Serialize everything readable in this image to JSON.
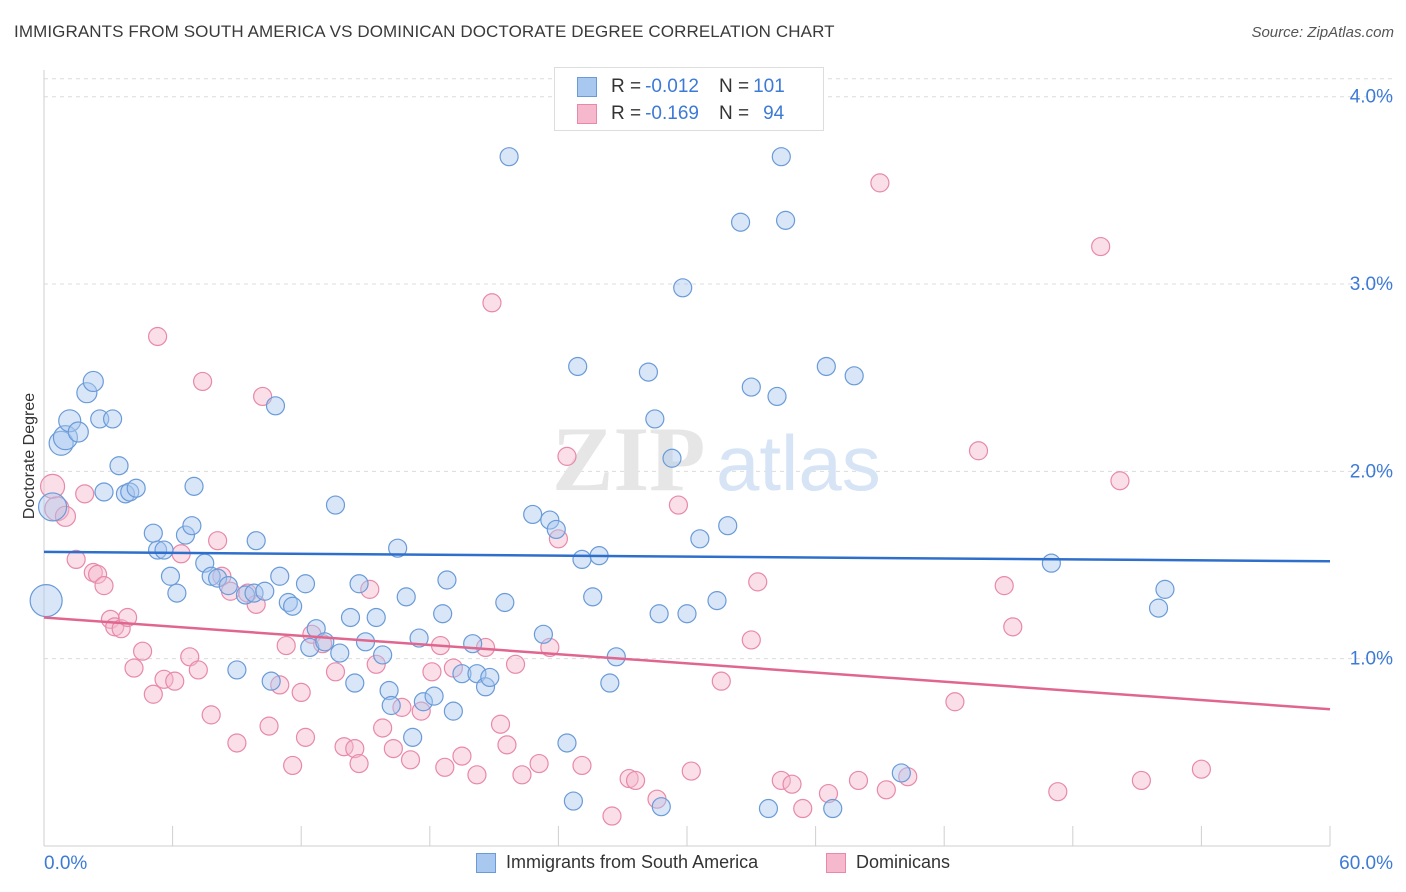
{
  "title": "IMMIGRANTS FROM SOUTH AMERICA VS DOMINICAN DOCTORATE DEGREE CORRELATION CHART",
  "source": "Source: ZipAtlas.com",
  "watermark": {
    "zip": "ZIP",
    "atlas": "atlas"
  },
  "legend_top": {
    "rows": [
      {
        "r_label": "R = ",
        "r_value": "-0.012",
        "n_label": "N = ",
        "n_value": "101"
      },
      {
        "r_label": "R = ",
        "r_value": "-0.169",
        "n_label": "N = ",
        "n_value": "94"
      }
    ]
  },
  "colors": {
    "blue_fill": "#a9c8ef",
    "blue_stroke": "#6a9bd8",
    "blue_line": "#2f6fcc",
    "pink_fill": "#f5b8cc",
    "pink_stroke": "#e889a9",
    "pink_line": "#e0668f",
    "tick_text": "#3d7ad6",
    "grid": "#dcdcdc"
  },
  "chart_data": {
    "type": "scatter",
    "title": "IMMIGRANTS FROM SOUTH AMERICA VS DOMINICAN DOCTORATE DEGREE CORRELATION CHART",
    "xlabel": "",
    "ylabel": "Doctorate Degree",
    "xlim": [
      0,
      60
    ],
    "ylim": [
      0,
      4.1
    ],
    "x_tick_labels": [
      "0.0%",
      "60.0%"
    ],
    "y_ticks": [
      1.0,
      2.0,
      3.0,
      4.0
    ],
    "y_tick_labels": [
      "1.0%",
      "2.0%",
      "3.0%",
      "4.0%"
    ],
    "grid": "horizontal dashed",
    "legend": "bottom-center",
    "series": [
      {
        "name": "Immigrants from South America",
        "color": "#a9c8ef",
        "r": -0.012,
        "n": 101,
        "trend": {
          "x": [
            0,
            60
          ],
          "y": [
            1.57,
            1.52
          ]
        },
        "points": [
          [
            0.1,
            1.31,
            16
          ],
          [
            0.4,
            1.81,
            14
          ],
          [
            0.8,
            2.15,
            12
          ],
          [
            1.0,
            2.18,
            12
          ],
          [
            1.2,
            2.27,
            11
          ],
          [
            1.6,
            2.21,
            10
          ],
          [
            2.0,
            2.42,
            10
          ],
          [
            2.3,
            2.48,
            10
          ],
          [
            2.6,
            2.28,
            9
          ],
          [
            2.8,
            1.89,
            9
          ],
          [
            3.2,
            2.28,
            9
          ],
          [
            3.5,
            2.03,
            9
          ],
          [
            3.8,
            1.88,
            9
          ],
          [
            4.0,
            1.89,
            9
          ],
          [
            4.3,
            1.91,
            9
          ],
          [
            5.1,
            1.67,
            9
          ],
          [
            5.3,
            1.58,
            9
          ],
          [
            5.6,
            1.58,
            9
          ],
          [
            5.9,
            1.44,
            9
          ],
          [
            6.2,
            1.35,
            9
          ],
          [
            6.6,
            1.66,
            9
          ],
          [
            6.9,
            1.71,
            9
          ],
          [
            7.0,
            1.92,
            9
          ],
          [
            7.5,
            1.51,
            9
          ],
          [
            7.8,
            1.44,
            9
          ],
          [
            8.1,
            1.43,
            9
          ],
          [
            8.6,
            1.39,
            9
          ],
          [
            9.0,
            0.94,
            9
          ],
          [
            9.4,
            1.34,
            9
          ],
          [
            9.8,
            1.35,
            9
          ],
          [
            9.9,
            1.63,
            9
          ],
          [
            10.3,
            1.36,
            9
          ],
          [
            10.6,
            0.88,
            9
          ],
          [
            10.8,
            2.35,
            9
          ],
          [
            11.0,
            1.44,
            9
          ],
          [
            11.4,
            1.3,
            9
          ],
          [
            11.6,
            1.28,
            9
          ],
          [
            12.2,
            1.4,
            9
          ],
          [
            12.4,
            1.06,
            9
          ],
          [
            12.7,
            1.16,
            9
          ],
          [
            13.1,
            1.09,
            9
          ],
          [
            13.6,
            1.82,
            9
          ],
          [
            13.8,
            1.03,
            9
          ],
          [
            14.3,
            1.22,
            9
          ],
          [
            14.5,
            0.87,
            9
          ],
          [
            14.7,
            1.4,
            9
          ],
          [
            15.0,
            1.09,
            9
          ],
          [
            15.5,
            1.22,
            9
          ],
          [
            15.8,
            1.02,
            9
          ],
          [
            16.1,
            0.83,
            9
          ],
          [
            16.2,
            0.75,
            9
          ],
          [
            16.5,
            1.59,
            9
          ],
          [
            16.9,
            1.33,
            9
          ],
          [
            17.2,
            0.58,
            9
          ],
          [
            17.5,
            1.11,
            9
          ],
          [
            17.7,
            0.77,
            9
          ],
          [
            18.2,
            0.8,
            9
          ],
          [
            18.6,
            1.24,
            9
          ],
          [
            18.8,
            1.42,
            9
          ],
          [
            19.1,
            0.72,
            9
          ],
          [
            19.5,
            0.92,
            9
          ],
          [
            20.0,
            1.08,
            9
          ],
          [
            20.2,
            0.92,
            9
          ],
          [
            20.6,
            0.85,
            9
          ],
          [
            20.8,
            0.9,
            9
          ],
          [
            21.5,
            1.3,
            9
          ],
          [
            21.7,
            3.68,
            9
          ],
          [
            22.8,
            1.77,
            9
          ],
          [
            23.3,
            1.13,
            9
          ],
          [
            23.6,
            1.74,
            9
          ],
          [
            23.9,
            1.69,
            9
          ],
          [
            24.4,
            0.55,
            9
          ],
          [
            24.7,
            0.24,
            9
          ],
          [
            24.9,
            2.56,
            9
          ],
          [
            25.1,
            1.53,
            9
          ],
          [
            25.6,
            1.33,
            9
          ],
          [
            25.9,
            1.55,
            9
          ],
          [
            26.4,
            0.87,
            9
          ],
          [
            26.7,
            1.01,
            9
          ],
          [
            28.2,
            2.53,
            9
          ],
          [
            28.5,
            2.28,
            9
          ],
          [
            28.7,
            1.24,
            9
          ],
          [
            28.8,
            0.21,
            9
          ],
          [
            29.3,
            2.07,
            9
          ],
          [
            29.8,
            2.98,
            9
          ],
          [
            30.0,
            1.24,
            9
          ],
          [
            30.6,
            1.64,
            9
          ],
          [
            31.4,
            1.31,
            9
          ],
          [
            31.9,
            1.71,
            9
          ],
          [
            32.5,
            3.33,
            9
          ],
          [
            33.0,
            2.45,
            9
          ],
          [
            33.8,
            0.2,
            9
          ],
          [
            34.2,
            2.4,
            9
          ],
          [
            34.4,
            3.68,
            9
          ],
          [
            34.6,
            3.34,
            9
          ],
          [
            36.5,
            2.56,
            9
          ],
          [
            36.8,
            0.2,
            9
          ],
          [
            37.8,
            2.51,
            9
          ],
          [
            40.0,
            0.39,
            9
          ],
          [
            47.0,
            1.51,
            9
          ],
          [
            52.0,
            1.27,
            9
          ],
          [
            52.3,
            1.37,
            9
          ]
        ]
      },
      {
        "name": "Dominicans",
        "color": "#f5b8cc",
        "r": -0.169,
        "n": 94,
        "trend": {
          "x": [
            0,
            60
          ],
          "y": [
            1.22,
            0.73
          ]
        },
        "points": [
          [
            0.4,
            1.92,
            12
          ],
          [
            0.6,
            1.8,
            12
          ],
          [
            1.0,
            1.76,
            10
          ],
          [
            1.5,
            1.53,
            9
          ],
          [
            1.9,
            1.88,
            9
          ],
          [
            2.3,
            1.46,
            9
          ],
          [
            2.5,
            1.45,
            9
          ],
          [
            2.8,
            1.39,
            9
          ],
          [
            3.1,
            1.21,
            9
          ],
          [
            3.3,
            1.17,
            9
          ],
          [
            3.6,
            1.16,
            9
          ],
          [
            3.9,
            1.22,
            9
          ],
          [
            4.2,
            0.95,
            9
          ],
          [
            4.6,
            1.04,
            9
          ],
          [
            5.1,
            0.81,
            9
          ],
          [
            5.3,
            2.72,
            9
          ],
          [
            5.6,
            0.89,
            9
          ],
          [
            6.1,
            0.88,
            9
          ],
          [
            6.4,
            1.56,
            9
          ],
          [
            6.8,
            1.01,
            9
          ],
          [
            7.2,
            0.94,
            9
          ],
          [
            7.4,
            2.48,
            9
          ],
          [
            7.8,
            0.7,
            9
          ],
          [
            8.1,
            1.63,
            9
          ],
          [
            8.3,
            1.44,
            9
          ],
          [
            8.7,
            1.36,
            9
          ],
          [
            9.0,
            0.55,
            9
          ],
          [
            9.5,
            1.35,
            9
          ],
          [
            9.9,
            1.29,
            9
          ],
          [
            10.2,
            2.4,
            9
          ],
          [
            10.5,
            0.64,
            9
          ],
          [
            11.0,
            0.86,
            9
          ],
          [
            11.3,
            1.07,
            9
          ],
          [
            11.6,
            0.43,
            9
          ],
          [
            12.0,
            0.82,
            9
          ],
          [
            12.2,
            0.58,
            9
          ],
          [
            12.5,
            1.13,
            9
          ],
          [
            13.0,
            1.08,
            9
          ],
          [
            13.6,
            0.93,
            9
          ],
          [
            14.0,
            0.53,
            9
          ],
          [
            14.5,
            0.52,
            9
          ],
          [
            14.7,
            0.44,
            9
          ],
          [
            15.2,
            1.37,
            9
          ],
          [
            15.5,
            0.97,
            9
          ],
          [
            15.8,
            0.63,
            9
          ],
          [
            16.3,
            0.52,
            9
          ],
          [
            16.7,
            0.74,
            9
          ],
          [
            17.1,
            0.46,
            9
          ],
          [
            17.6,
            0.72,
            9
          ],
          [
            18.1,
            0.93,
            9
          ],
          [
            18.5,
            1.07,
            9
          ],
          [
            18.7,
            0.42,
            9
          ],
          [
            19.1,
            0.95,
            9
          ],
          [
            19.5,
            0.48,
            9
          ],
          [
            20.2,
            0.38,
            9
          ],
          [
            20.6,
            1.06,
            9
          ],
          [
            20.9,
            2.9,
            9
          ],
          [
            21.3,
            0.65,
            9
          ],
          [
            21.6,
            0.54,
            9
          ],
          [
            22.0,
            0.97,
            9
          ],
          [
            22.3,
            0.38,
            9
          ],
          [
            23.1,
            0.44,
            9
          ],
          [
            23.6,
            1.06,
            9
          ],
          [
            24.0,
            1.64,
            9
          ],
          [
            24.4,
            2.08,
            9
          ],
          [
            25.1,
            0.43,
            9
          ],
          [
            26.5,
            0.16,
            9
          ],
          [
            27.3,
            0.36,
            9
          ],
          [
            27.6,
            0.35,
            9
          ],
          [
            28.6,
            0.25,
            9
          ],
          [
            29.6,
            1.82,
            9
          ],
          [
            30.2,
            0.4,
            9
          ],
          [
            31.6,
            0.88,
            9
          ],
          [
            33.0,
            1.1,
            9
          ],
          [
            33.3,
            1.41,
            9
          ],
          [
            34.4,
            0.35,
            9
          ],
          [
            34.9,
            0.33,
            9
          ],
          [
            35.4,
            0.2,
            9
          ],
          [
            36.6,
            0.28,
            9
          ],
          [
            38.0,
            0.35,
            9
          ],
          [
            39.3,
            0.3,
            9
          ],
          [
            40.3,
            0.37,
            9
          ],
          [
            42.5,
            0.77,
            9
          ],
          [
            43.6,
            2.11,
            9
          ],
          [
            44.8,
            1.39,
            9
          ],
          [
            45.2,
            1.17,
            9
          ],
          [
            47.3,
            0.29,
            9
          ],
          [
            49.3,
            3.2,
            9
          ],
          [
            50.2,
            1.95,
            9
          ],
          [
            51.2,
            0.35,
            9
          ],
          [
            54.0,
            0.41,
            9
          ],
          [
            39.0,
            3.54,
            9
          ]
        ]
      }
    ]
  }
}
